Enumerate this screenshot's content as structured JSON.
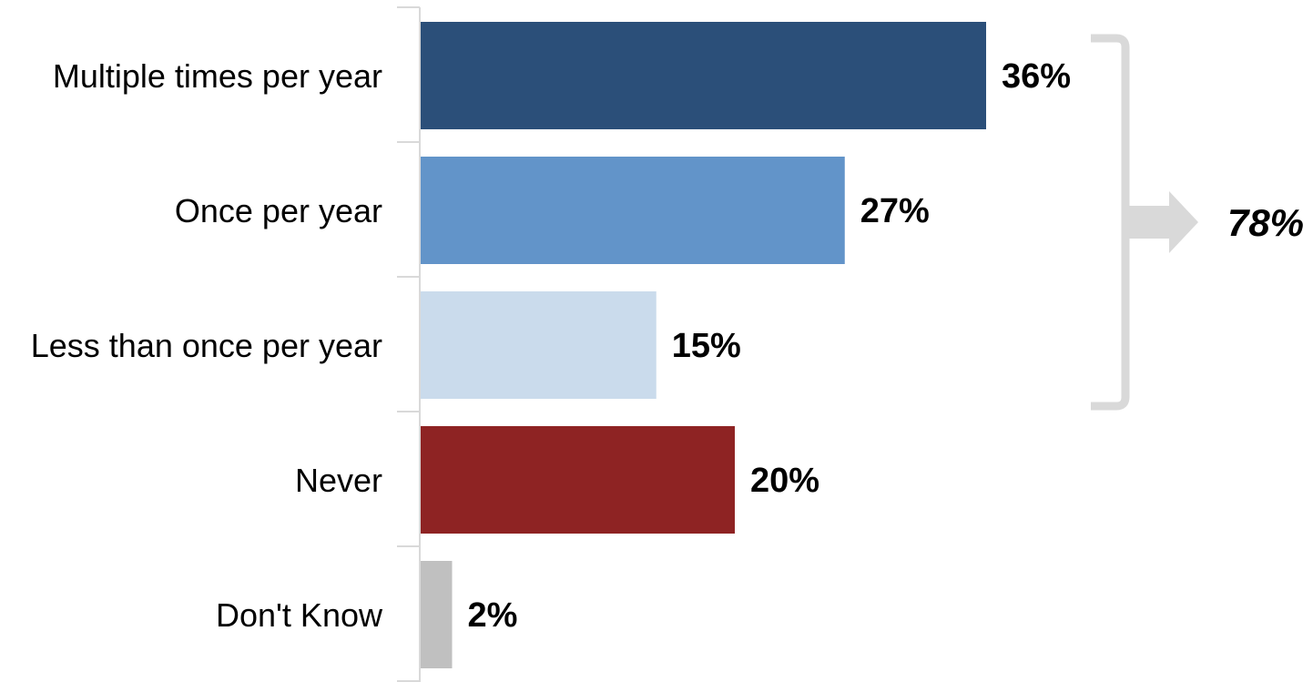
{
  "chart_data": {
    "type": "bar",
    "orientation": "horizontal",
    "categories": [
      "Multiple times per year",
      "Once per year",
      "Less than once per year",
      "Never",
      "Don't Know"
    ],
    "values": [
      36,
      27,
      15,
      20,
      2
    ],
    "value_labels": [
      "36%",
      "27%",
      "15%",
      "20%",
      "2%"
    ],
    "colors": [
      "#2b4f79",
      "#6294c9",
      "#cadbec",
      "#8e2323",
      "#c0c0c0"
    ],
    "xlim": [
      0,
      36
    ],
    "grid": false,
    "legend": "none",
    "annotation": {
      "bracket_categories": [
        "Multiple times per year",
        "Once per year",
        "Less than once per year"
      ],
      "total_label": "78%",
      "bracket_color": "#d9d9d9"
    }
  }
}
